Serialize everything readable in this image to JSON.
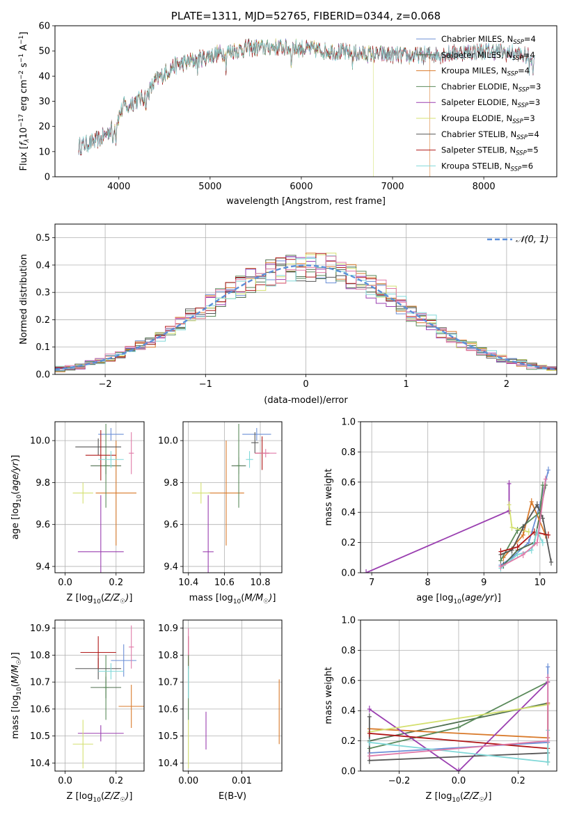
{
  "colors": {
    "chabrier_miles": "#6b8fd6",
    "salpeter_miles": "#4f6f4f",
    "kroupa_miles": "#d97a2b",
    "chabrier_elodie": "#5a8a5a",
    "salpeter_elodie": "#9a3fb0",
    "kroupa_elodie": "#d4e070",
    "chabrier_stelib": "#555555",
    "salpeter_stelib": "#b01818",
    "kroupa_stelib": "#80d8d8",
    "pink": "#e07aa8",
    "normal": "#5b8fd9",
    "grid": "#b0b0b0"
  },
  "chart_data": [
    {
      "id": "spectrum",
      "type": "line",
      "title": "PLATE=1311, MJD=52765, FIBERID=0344, z=0.068",
      "xlabel": "wavelength [Angstrom, rest frame]",
      "ylabel": "Flux [f_λ10^-17 erg cm^-2 s^-1 A^-1]",
      "xlim": [
        3300,
        8800
      ],
      "ylim": [
        0,
        60
      ],
      "xticks": [
        "4000",
        "5000",
        "6000",
        "7000",
        "8000"
      ],
      "yticks": [
        "0",
        "10",
        "20",
        "30",
        "40",
        "50",
        "60"
      ],
      "grid": false,
      "legend": "top-right",
      "continuum": [
        [
          3560,
          12
        ],
        [
          3800,
          15
        ],
        [
          3950,
          20
        ],
        [
          4050,
          28
        ],
        [
          4300,
          32
        ],
        [
          4400,
          38
        ],
        [
          4600,
          44
        ],
        [
          4900,
          47
        ],
        [
          5100,
          49
        ],
        [
          5400,
          51
        ],
        [
          5700,
          51.5
        ],
        [
          6000,
          51
        ],
        [
          6300,
          50
        ],
        [
          6600,
          49
        ],
        [
          6900,
          48.5
        ],
        [
          7200,
          48
        ],
        [
          7500,
          48.5
        ],
        [
          7800,
          49.5
        ],
        [
          8100,
          50
        ],
        [
          8400,
          48.5
        ],
        [
          8550,
          47
        ]
      ],
      "series": [
        {
          "name": "Chabrier MILES, N",
          "sub": "SSP",
          "suffix": "=4",
          "color_key": "chabrier_miles"
        },
        {
          "name": "Salpeter MILES, N",
          "sub": "SSP",
          "suffix": "=4",
          "color_key": "salpeter_miles"
        },
        {
          "name": "Kroupa MILES, N",
          "sub": "SSP",
          "suffix": "=4",
          "color_key": "kroupa_miles"
        },
        {
          "name": "Chabrier ELODIE, N",
          "sub": "SSP",
          "suffix": "=3",
          "color_key": "chabrier_elodie"
        },
        {
          "name": "Salpeter ELODIE, N",
          "sub": "SSP",
          "suffix": "=3",
          "color_key": "salpeter_elodie"
        },
        {
          "name": "Kroupa ELODIE, N",
          "sub": "SSP",
          "suffix": "=3",
          "color_key": "kroupa_elodie"
        },
        {
          "name": "Chabrier STELIB, N",
          "sub": "SSP",
          "suffix": "=4",
          "color_key": "chabrier_stelib"
        },
        {
          "name": "Salpeter STELIB, N",
          "sub": "SSP",
          "suffix": "=5",
          "color_key": "salpeter_stelib"
        },
        {
          "name": "Kroupa STELIB, N",
          "sub": "SSP",
          "suffix": "=6",
          "color_key": "kroupa_stelib"
        }
      ]
    },
    {
      "id": "residuals",
      "type": "line",
      "xlabel": "(data-model)/error",
      "ylabel": "Normed distribution",
      "xlim": [
        -2.5,
        2.5
      ],
      "ylim": [
        0,
        0.55
      ],
      "xticks": [
        "−2",
        "−1",
        "0",
        "1",
        "2"
      ],
      "yticks": [
        "0.0",
        "0.1",
        "0.2",
        "0.3",
        "0.4",
        "0.5"
      ],
      "grid": true,
      "legend": "top-right",
      "legend_label": "𝒩(0, 1)",
      "bin_width": 0.1
    },
    {
      "id": "z-age",
      "type": "scatter",
      "xlabel": "Z [log10(Z/Z☉)]",
      "ylabel": "age  [log10(age/yr)]",
      "xlim": [
        -0.04,
        0.31
      ],
      "ylim": [
        9.37,
        10.09
      ],
      "xticks": [
        "0.0",
        "0.2"
      ],
      "yticks": [
        "9.4",
        "9.6",
        "9.8",
        "10.0"
      ],
      "grid": true,
      "points": [
        {
          "c": "chabrier_miles",
          "x": 0.18,
          "xerr": 0.05,
          "y": 10.03,
          "yerr": 0.03
        },
        {
          "c": "salpeter_miles",
          "x": 0.16,
          "xerr": 0.06,
          "y": 9.88,
          "yerr": 0.04
        },
        {
          "c": "kroupa_miles",
          "x": 0.2,
          "xerr": 0.08,
          "y": 9.75,
          "yerr": 0.25
        },
        {
          "c": "chabrier_elodie",
          "x": 0.16,
          "xerr": 0.01,
          "y": 9.88,
          "yerr": 0.2
        },
        {
          "c": "salpeter_elodie",
          "x": 0.14,
          "xerr": 0.09,
          "y": 9.47,
          "yerr": 0.27
        },
        {
          "c": "kroupa_elodie",
          "x": 0.07,
          "xerr": 0.04,
          "y": 9.75,
          "yerr": 0.05
        },
        {
          "c": "chabrier_stelib",
          "x": 0.13,
          "xerr": 0.09,
          "y": 9.97,
          "yerr": 0.04
        },
        {
          "c": "salpeter_stelib",
          "x": 0.14,
          "xerr": 0.06,
          "y": 9.93,
          "yerr": 0.12
        },
        {
          "c": "kroupa_stelib",
          "x": 0.18,
          "xerr": 0.05,
          "y": 9.91,
          "yerr": 0.04
        },
        {
          "c": "pink",
          "x": 0.26,
          "xerr": 0.01,
          "y": 9.94,
          "yerr": 0.1
        }
      ]
    },
    {
      "id": "mass-age",
      "type": "scatter",
      "xlabel": "mass [log10(M/M☉)]",
      "ylabel": "",
      "xlim": [
        10.37,
        10.92
      ],
      "ylim": [
        9.37,
        10.09
      ],
      "xticks": [
        "10.4",
        "10.6",
        "10.8"
      ],
      "yticks": [
        "9.4",
        "9.6",
        "9.8",
        "10.0"
      ],
      "grid": true,
      "points": [
        {
          "c": "chabrier_miles",
          "x": 10.78,
          "xerr": 0.08,
          "y": 10.03,
          "yerr": 0.03
        },
        {
          "c": "salpeter_miles",
          "x": 10.68,
          "xerr": 0.04,
          "y": 9.88,
          "yerr": 0.04
        },
        {
          "c": "kroupa_miles",
          "x": 10.61,
          "xerr": 0.1,
          "y": 9.75,
          "yerr": 0.25
        },
        {
          "c": "chabrier_elodie",
          "x": 10.68,
          "xerr": 0.01,
          "y": 9.88,
          "yerr": 0.2
        },
        {
          "c": "salpeter_elodie",
          "x": 10.51,
          "xerr": 0.03,
          "y": 9.47,
          "yerr": 0.27
        },
        {
          "c": "kroupa_elodie",
          "x": 10.47,
          "xerr": 0.05,
          "y": 9.75,
          "yerr": 0.05
        },
        {
          "c": "chabrier_stelib",
          "x": 10.77,
          "xerr": 0.02,
          "y": 9.99,
          "yerr": 0.05
        },
        {
          "c": "salpeter_stelib",
          "x": 10.81,
          "xerr": 0.04,
          "y": 9.94,
          "yerr": 0.08
        },
        {
          "c": "kroupa_stelib",
          "x": 10.74,
          "xerr": 0.02,
          "y": 9.91,
          "yerr": 0.04
        },
        {
          "c": "pink",
          "x": 10.83,
          "xerr": 0.06,
          "y": 9.94,
          "yerr": 0.02
        }
      ]
    },
    {
      "id": "age-weight",
      "type": "line",
      "xlabel": "age  [log10(age/yr)]",
      "ylabel": "mass weight",
      "xlim": [
        6.8,
        10.3
      ],
      "ylim": [
        0,
        1
      ],
      "xticks": [
        "7",
        "8",
        "9",
        "10"
      ],
      "yticks": [
        "0.0",
        "0.2",
        "0.4",
        "0.6",
        "0.8",
        "1.0"
      ],
      "grid": true,
      "series": [
        {
          "c": "chabrier_miles",
          "x": [
            9.3,
            9.5,
            9.8,
            10.0,
            10.15
          ],
          "y": [
            0.05,
            0.1,
            0.2,
            0.45,
            0.68
          ]
        },
        {
          "c": "salpeter_miles",
          "x": [
            9.35,
            9.6,
            9.9,
            10.1
          ],
          "y": [
            0.05,
            0.15,
            0.2,
            0.58
          ]
        },
        {
          "c": "kroupa_miles",
          "x": [
            9.35,
            9.7,
            9.85,
            10.1
          ],
          "y": [
            0.1,
            0.25,
            0.47,
            0.25
          ]
        },
        {
          "c": "chabrier_elodie",
          "x": [
            9.3,
            9.6,
            10.0,
            10.05
          ],
          "y": [
            0.08,
            0.28,
            0.4,
            0.58
          ]
        },
        {
          "c": "salpeter_elodie",
          "x": [
            6.9,
            9.45,
            9.45
          ],
          "y": [
            0.0,
            0.41,
            0.59
          ]
        },
        {
          "c": "kroupa_elodie",
          "x": [
            9.45,
            9.5,
            9.8
          ],
          "y": [
            0.45,
            0.3,
            0.27
          ]
        },
        {
          "c": "chabrier_stelib",
          "x": [
            9.3,
            9.5,
            9.7,
            9.95,
            10.05,
            10.2
          ],
          "y": [
            0.12,
            0.15,
            0.3,
            0.45,
            0.36,
            0.07
          ]
        },
        {
          "c": "salpeter_stelib",
          "x": [
            9.3,
            9.6,
            9.9,
            10.15
          ],
          "y": [
            0.14,
            0.17,
            0.27,
            0.25
          ]
        },
        {
          "c": "kroupa_stelib",
          "x": [
            9.3,
            9.6,
            9.85,
            9.95,
            10.05
          ],
          "y": [
            0.03,
            0.12,
            0.15,
            0.27,
            0.2
          ]
        },
        {
          "c": "pink",
          "x": [
            9.3,
            9.7,
            9.95,
            10.1
          ],
          "y": [
            0.04,
            0.12,
            0.2,
            0.62
          ]
        }
      ]
    },
    {
      "id": "z-mass",
      "type": "scatter",
      "xlabel": "Z [log10(Z/Z☉)]",
      "ylabel": "mass [log10(M/M☉)]",
      "xlim": [
        -0.04,
        0.31
      ],
      "ylim": [
        10.37,
        10.93
      ],
      "xticks": [
        "0.0",
        "0.2"
      ],
      "yticks": [
        "10.4",
        "10.5",
        "10.6",
        "10.7",
        "10.8",
        "10.9"
      ],
      "grid": true,
      "points": [
        {
          "c": "chabrier_miles",
          "x": 0.23,
          "xerr": 0.05,
          "y": 10.78,
          "yerr": 0.06
        },
        {
          "c": "salpeter_miles",
          "x": 0.16,
          "xerr": 0.06,
          "y": 10.68,
          "yerr": 0.04
        },
        {
          "c": "kroupa_miles",
          "x": 0.26,
          "xerr": 0.05,
          "y": 10.61,
          "yerr": 0.08
        },
        {
          "c": "chabrier_elodie",
          "x": 0.16,
          "xerr": 0.01,
          "y": 10.68,
          "yerr": 0.12
        },
        {
          "c": "salpeter_elodie",
          "x": 0.14,
          "xerr": 0.09,
          "y": 10.51,
          "yerr": 0.03
        },
        {
          "c": "kroupa_elodie",
          "x": 0.07,
          "xerr": 0.04,
          "y": 10.47,
          "yerr": 0.09
        },
        {
          "c": "chabrier_stelib",
          "x": 0.13,
          "xerr": 0.09,
          "y": 10.75,
          "yerr": 0.04
        },
        {
          "c": "salpeter_stelib",
          "x": 0.13,
          "xerr": 0.07,
          "y": 10.81,
          "yerr": 0.06
        },
        {
          "c": "kroupa_stelib",
          "x": 0.18,
          "xerr": 0.05,
          "y": 10.74,
          "yerr": 0.03
        },
        {
          "c": "pink",
          "x": 0.26,
          "xerr": 0.01,
          "y": 10.83,
          "yerr": 0.08
        }
      ]
    },
    {
      "id": "ebv-mass",
      "type": "scatter",
      "xlabel": "E(B-V)",
      "ylabel": "",
      "xlim": [
        -0.001,
        0.0175
      ],
      "ylim": [
        10.37,
        10.93
      ],
      "xticks": [
        "0.00",
        "0.01"
      ],
      "yticks": [
        "10.4",
        "10.5",
        "10.6",
        "10.7",
        "10.8",
        "10.9"
      ],
      "grid": true,
      "points": [
        {
          "c": "salpeter_stelib",
          "x": 0.0,
          "xerr": 0,
          "y": 10.81,
          "yerr": 0.06
        },
        {
          "c": "chabrier_elodie",
          "x": 0.0,
          "xerr": 0,
          "y": 10.68,
          "yerr": 0.12
        },
        {
          "c": "kroupa_stelib",
          "x": 0.0,
          "xerr": 0,
          "y": 10.7,
          "yerr": 0.06
        },
        {
          "c": "kroupa_elodie",
          "x": 0.0,
          "xerr": 0,
          "y": 10.47,
          "yerr": 0.09
        },
        {
          "c": "pink",
          "x": 0.0,
          "xerr": 0,
          "y": 10.85,
          "yerr": 0.05
        },
        {
          "c": "salpeter_elodie",
          "x": 0.0033,
          "xerr": 0,
          "y": 10.52,
          "yerr": 0.07
        },
        {
          "c": "kroupa_miles",
          "x": 0.017,
          "xerr": 0,
          "y": 10.59,
          "yerr": 0.12
        }
      ]
    },
    {
      "id": "z-weight",
      "type": "line",
      "xlabel": "Z [log10(Z/Z☉)]",
      "ylabel": "mass weight",
      "xlim": [
        -0.33,
        0.33
      ],
      "ylim": [
        0,
        1
      ],
      "xticks": [
        "−0.2",
        "0.0",
        "0.2"
      ],
      "yticks": [
        "0.0",
        "0.2",
        "0.4",
        "0.6",
        "0.8",
        "1.0"
      ],
      "grid": true,
      "series": [
        {
          "c": "chabrier_miles",
          "x": [
            -0.3,
            0.3,
            0.3
          ],
          "y": [
            0.12,
            0.19,
            0.69
          ]
        },
        {
          "c": "salpeter_miles",
          "x": [
            -0.3,
            0.3,
            0.3
          ],
          "y": [
            0.2,
            0.45,
            0.06
          ]
        },
        {
          "c": "kroupa_miles",
          "x": [
            -0.3,
            0.3,
            0.3
          ],
          "y": [
            0.28,
            0.22,
            0.45
          ]
        },
        {
          "c": "chabrier_elodie",
          "x": [
            -0.3,
            0.0,
            0.3
          ],
          "y": [
            0.15,
            0.29,
            0.59
          ]
        },
        {
          "c": "salpeter_elodie",
          "x": [
            -0.3,
            0.0,
            0.3
          ],
          "y": [
            0.41,
            0.0,
            0.59
          ]
        },
        {
          "c": "kroupa_elodie",
          "x": [
            -0.3,
            0.3
          ],
          "y": [
            0.26,
            0.44
          ]
        },
        {
          "c": "chabrier_stelib",
          "x": [
            -0.3,
            -0.3,
            0.3
          ],
          "y": [
            0.36,
            0.07,
            0.12
          ]
        },
        {
          "c": "salpeter_stelib",
          "x": [
            -0.3,
            0.3
          ],
          "y": [
            0.25,
            0.15
          ]
        },
        {
          "c": "kroupa_stelib",
          "x": [
            -0.3,
            0.3,
            0.3
          ],
          "y": [
            0.19,
            0.06,
            0.27
          ]
        },
        {
          "c": "pink",
          "x": [
            -0.3,
            0.3,
            0.3
          ],
          "y": [
            0.1,
            0.2,
            0.62
          ]
        }
      ]
    }
  ]
}
